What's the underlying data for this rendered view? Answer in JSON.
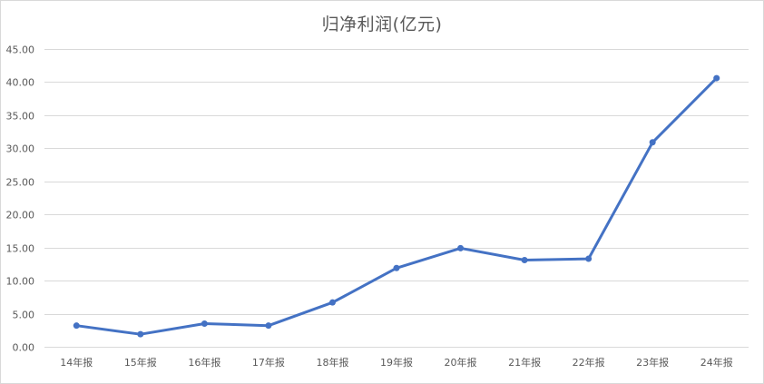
{
  "chart_data": {
    "type": "line",
    "title": "归净利润(亿元)",
    "xlabel": "",
    "ylabel": "",
    "categories": [
      "14年报",
      "15年报",
      "16年报",
      "17年报",
      "18年报",
      "19年报",
      "20年报",
      "21年报",
      "22年报",
      "23年报",
      "24年报"
    ],
    "series": [
      {
        "values": [
          3.2,
          1.9,
          3.5,
          3.2,
          6.7,
          11.9,
          14.9,
          13.1,
          13.3,
          30.9,
          40.6
        ],
        "color": "#4472c4"
      }
    ],
    "ylim": [
      0,
      45
    ],
    "yticks": [
      0,
      5,
      10,
      15,
      20,
      25,
      30,
      35,
      40,
      45
    ],
    "ytick_labels": [
      "0.00",
      "5.00",
      "10.00",
      "15.00",
      "20.00",
      "25.00",
      "30.00",
      "35.00",
      "40.00",
      "45.00"
    ],
    "grid": true,
    "legend": "none",
    "markers": true
  }
}
